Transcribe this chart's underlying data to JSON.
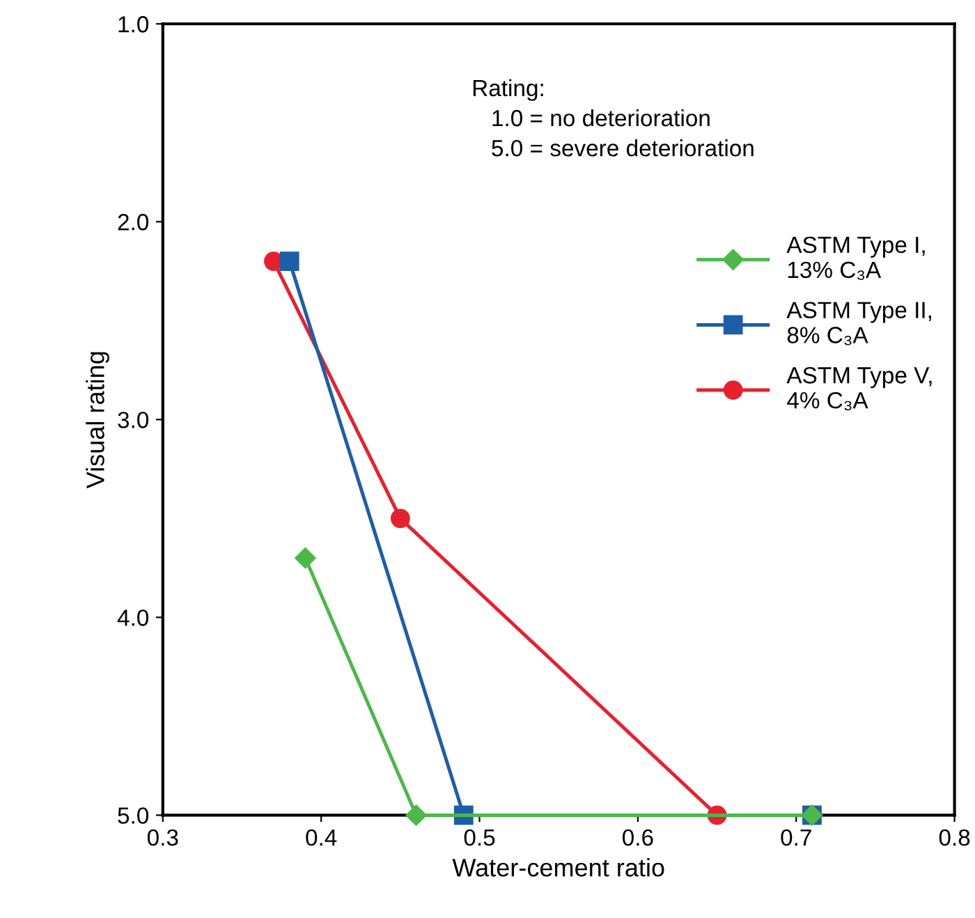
{
  "chart_data": {
    "type": "line",
    "xlabel": "Water-cement ratio",
    "ylabel": "Visual rating",
    "xlim": [
      0.3,
      0.8
    ],
    "xticks": [
      0.3,
      0.4,
      0.5,
      0.6,
      0.7,
      0.8
    ],
    "ylim": [
      5.0,
      1.0
    ],
    "yticks": [
      {
        "value": 1,
        "label": "1.0"
      },
      {
        "value": 2,
        "label": "2.0"
      },
      {
        "value": 3,
        "label": "3.0"
      },
      {
        "value": 4,
        "label": "4.0"
      },
      {
        "value": 5,
        "label": "5.0"
      }
    ],
    "grid": false,
    "legend": "right",
    "line_style": "solid",
    "annotations": [
      "Rating:\n   1.0 = no deterioration\n   5.0 = severe deterioration"
    ],
    "series": [
      {
        "name": "ASTM Type I,\n13% C₃A",
        "color": "#4cb849",
        "marker": "diamond",
        "x": [
          0.39,
          0.46,
          0.71
        ],
        "values": [
          3.7,
          5.0,
          5.0
        ]
      },
      {
        "name": "ASTM Type II,\n8% C₃A",
        "color": "#1d5ea8",
        "marker": "square",
        "x": [
          0.38,
          0.49,
          0.71
        ],
        "values": [
          2.2,
          5.0,
          5.0
        ]
      },
      {
        "name": "ASTM Type V,\n4% C₃A",
        "color": "#e8202e",
        "marker": "circle",
        "x": [
          0.37,
          0.45,
          0.65
        ],
        "values": [
          2.2,
          3.5,
          5.0
        ]
      }
    ]
  }
}
